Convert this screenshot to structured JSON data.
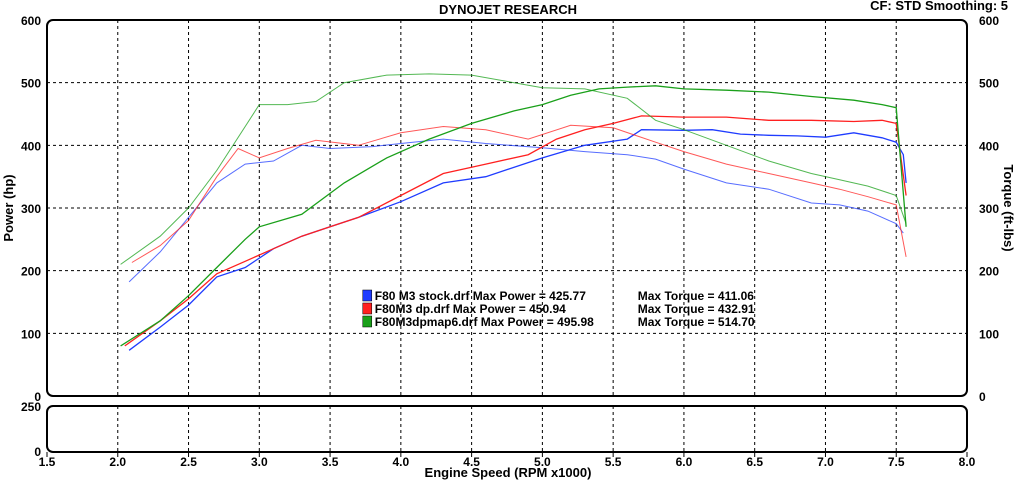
{
  "header": {
    "title": "DYNOJET RESEARCH",
    "info": "CF: STD   Smoothing: 5"
  },
  "chart_data": {
    "type": "line",
    "title": "DYNOJET RESEARCH",
    "xlabel": "Engine Speed (RPM x1000)",
    "ylabel": "Power (hp)",
    "y2label": "Torque (ft-lbs)",
    "xlim": [
      1.5,
      8.0
    ],
    "ylim": [
      0,
      600
    ],
    "y2lim": [
      0,
      600
    ],
    "xticks": [
      "1.5",
      "2.0",
      "2.5",
      "3.0",
      "3.5",
      "4.0",
      "4.5",
      "5.0",
      "5.5",
      "6.0",
      "6.5",
      "7.0",
      "7.5",
      "8.0"
    ],
    "yticks": [
      "0",
      "100",
      "200",
      "300",
      "400",
      "500",
      "600"
    ],
    "y2ticks": [
      "0",
      "100",
      "200",
      "300",
      "400",
      "500",
      "600"
    ],
    "grid": true,
    "sub_panel": {
      "ylim": [
        0,
        250
      ],
      "yticks": [
        "0",
        "250"
      ]
    },
    "legend": [
      {
        "text": "F80 M3 stock.drf Max Power = 425.77",
        "torque_text": "Max Torque = 411.06",
        "color": "#1f3cff"
      },
      {
        "text": "F80M3 dp.drf Max Power = 450.94",
        "torque_text": "Max Torque = 432.91",
        "color": "#ff2020"
      },
      {
        "text": "F80M3dpmap6.drf Max Power = 495.98",
        "torque_text": "Max Torque = 514.70",
        "color": "#1aa01a"
      }
    ],
    "series": [
      {
        "name": "F80 M3 stock.drf",
        "kind": "power",
        "color": "#1f3cff",
        "x": [
          2.08,
          2.3,
          2.5,
          2.7,
          2.9,
          3.1,
          3.3,
          3.5,
          3.7,
          4.0,
          4.3,
          4.6,
          5.0,
          5.3,
          5.6,
          5.7,
          6.0,
          6.2,
          6.4,
          6.6,
          6.8,
          7.0,
          7.2,
          7.4,
          7.5,
          7.55,
          7.57
        ],
        "y": [
          73,
          110,
          145,
          190,
          205,
          235,
          255,
          270,
          285,
          310,
          340,
          350,
          380,
          400,
          410,
          425,
          424,
          425,
          418,
          416,
          415,
          413,
          420,
          412,
          405,
          385,
          340
        ]
      },
      {
        "name": "F80 M3 stock.drf",
        "kind": "torque",
        "color": "#1f3cff",
        "x": [
          2.08,
          2.3,
          2.5,
          2.7,
          2.9,
          3.1,
          3.3,
          3.5,
          3.8,
          4.0,
          4.3,
          4.6,
          5.0,
          5.3,
          5.6,
          5.8,
          6.0,
          6.3,
          6.6,
          6.9,
          7.1,
          7.3,
          7.5,
          7.55
        ],
        "y": [
          182,
          230,
          285,
          340,
          370,
          375,
          400,
          395,
          398,
          403,
          410,
          403,
          396,
          390,
          385,
          378,
          362,
          340,
          330,
          308,
          305,
          295,
          275,
          260
        ]
      },
      {
        "name": "F80M3 dp.drf",
        "kind": "power",
        "color": "#ff2020",
        "x": [
          2.05,
          2.3,
          2.5,
          2.7,
          2.9,
          3.1,
          3.3,
          3.5,
          3.7,
          4.0,
          4.3,
          4.6,
          4.9,
          5.1,
          5.3,
          5.5,
          5.7,
          6.0,
          6.3,
          6.6,
          6.9,
          7.2,
          7.4,
          7.5,
          7.57
        ],
        "y": [
          80,
          120,
          155,
          195,
          215,
          235,
          255,
          270,
          285,
          320,
          355,
          370,
          385,
          410,
          425,
          435,
          447,
          445,
          445,
          440,
          440,
          438,
          440,
          435,
          320
        ]
      },
      {
        "name": "F80M3 dp.drf",
        "kind": "torque",
        "color": "#ff2020",
        "x": [
          2.1,
          2.3,
          2.5,
          2.7,
          2.85,
          3.0,
          3.2,
          3.4,
          3.7,
          4.0,
          4.3,
          4.6,
          4.9,
          5.2,
          5.5,
          5.8,
          6.0,
          6.3,
          6.6,
          6.9,
          7.1,
          7.3,
          7.5,
          7.57
        ],
        "y": [
          213,
          240,
          280,
          350,
          395,
          380,
          395,
          408,
          400,
          420,
          430,
          425,
          410,
          432,
          428,
          405,
          390,
          370,
          355,
          340,
          330,
          318,
          305,
          222
        ]
      },
      {
        "name": "F80M3dpmap6.drf",
        "kind": "power",
        "color": "#1aa01a",
        "x": [
          2.02,
          2.3,
          2.5,
          2.7,
          2.9,
          3.0,
          3.3,
          3.6,
          3.9,
          4.2,
          4.5,
          4.8,
          5.0,
          5.2,
          5.4,
          5.6,
          5.8,
          6.0,
          6.3,
          6.6,
          6.9,
          7.2,
          7.4,
          7.5,
          7.57
        ],
        "y": [
          80,
          120,
          160,
          205,
          250,
          270,
          290,
          340,
          380,
          410,
          435,
          455,
          465,
          480,
          490,
          493,
          495,
          490,
          488,
          485,
          478,
          472,
          465,
          460,
          270
        ]
      },
      {
        "name": "F80M3dpmap6.drf",
        "kind": "torque",
        "color": "#1aa01a",
        "x": [
          2.02,
          2.3,
          2.5,
          2.7,
          2.9,
          3.0,
          3.2,
          3.4,
          3.6,
          3.9,
          4.2,
          4.5,
          4.8,
          5.0,
          5.3,
          5.6,
          5.8,
          6.0,
          6.3,
          6.6,
          6.9,
          7.1,
          7.3,
          7.5,
          7.57
        ],
        "y": [
          210,
          255,
          300,
          360,
          430,
          465,
          465,
          470,
          500,
          512,
          514,
          512,
          500,
          492,
          490,
          475,
          440,
          425,
          400,
          375,
          355,
          345,
          335,
          320,
          275
        ]
      }
    ]
  }
}
